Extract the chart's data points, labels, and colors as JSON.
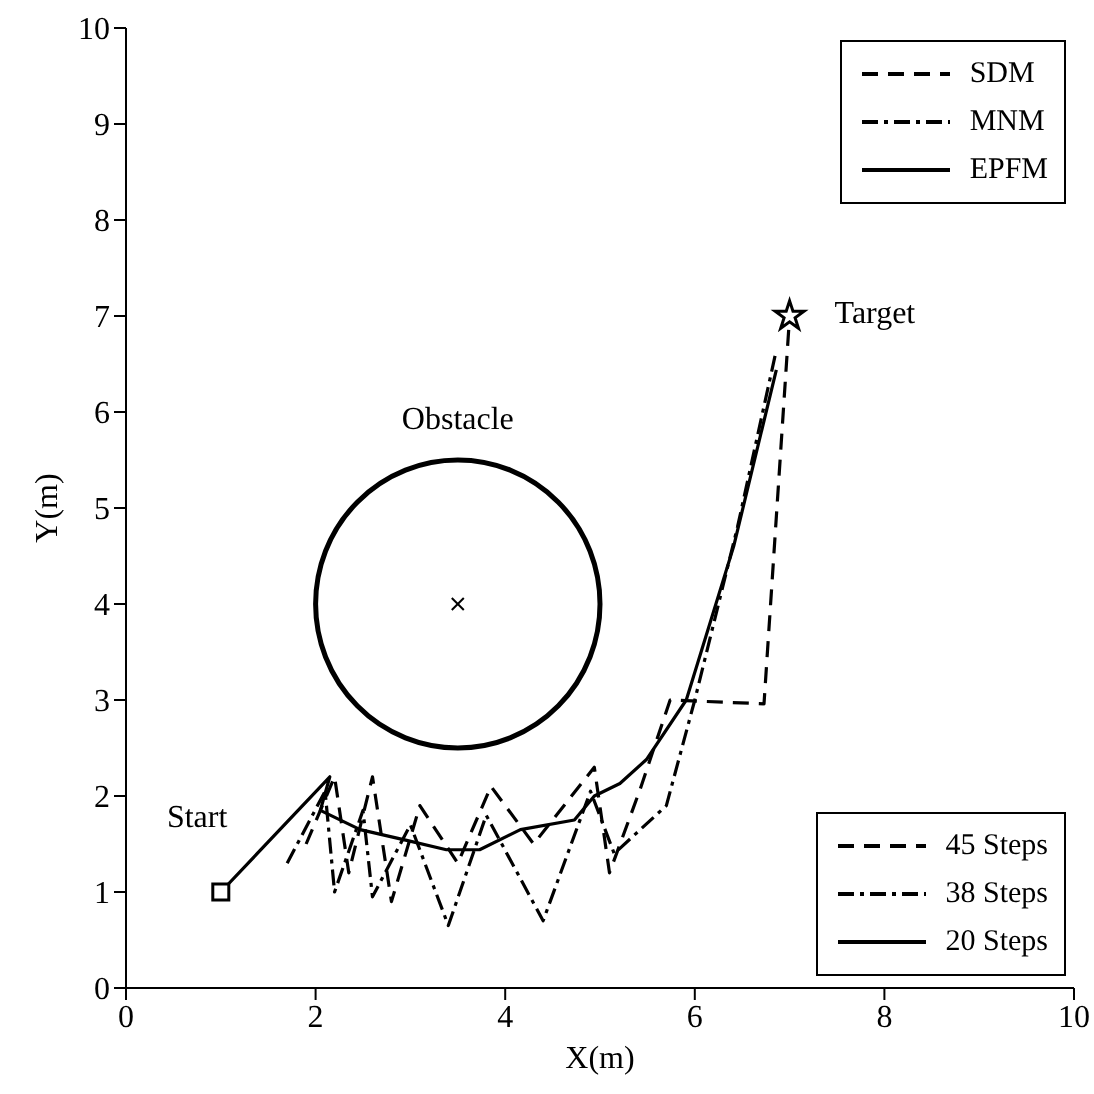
{
  "chart_data": {
    "type": "line",
    "xlabel": "X(m)",
    "ylabel": "Y(m)",
    "xlim": [
      0,
      10
    ],
    "ylim": [
      0,
      10
    ],
    "xticks": [
      0,
      2,
      4,
      6,
      8,
      10
    ],
    "yticks": [
      0,
      1,
      2,
      3,
      4,
      5,
      6,
      7,
      8,
      9,
      10
    ],
    "grid": false,
    "legend": "top right",
    "marker": "none",
    "series": [
      {
        "name": "SDM",
        "color": "#000000",
        "line_style": "dashed",
        "x": [
          1.9,
          2.2,
          2.35,
          2.6,
          2.8,
          3.1,
          3.5,
          3.85,
          4.3,
          4.94,
          5.1,
          5.42,
          5.74,
          6.73,
          7.0
        ],
        "values": [
          1.5,
          2.2,
          1.2,
          2.2,
          0.9,
          1.9,
          1.3,
          2.1,
          1.5,
          2.3,
          1.2,
          2.06,
          3.0,
          2.96,
          7.0
        ]
      },
      {
        "name": "MNM",
        "color": "#000000",
        "line_style": "dashdot",
        "x": [
          1.7,
          2.1,
          2.2,
          2.5,
          2.6,
          3.0,
          3.4,
          3.8,
          4.4,
          4.9,
          5.15,
          5.7,
          6.0,
          6.45,
          6.85
        ],
        "values": [
          1.3,
          2.05,
          1.0,
          1.85,
          0.95,
          1.7,
          0.65,
          1.8,
          0.7,
          2.05,
          1.4,
          1.9,
          3.0,
          4.8,
          6.6
        ]
      },
      {
        "name": "EPFM",
        "color": "#000000",
        "line_style": "solid",
        "x": [
          1,
          2.15,
          2.05,
          2.47,
          2.95,
          3.38,
          3.73,
          4.16,
          4.73,
          4.94,
          5.21,
          5.49,
          5.91,
          6.41,
          6.86
        ],
        "values": [
          1,
          2.2,
          1.85,
          1.65,
          1.54,
          1.44,
          1.44,
          1.65,
          1.75,
          2.0,
          2.13,
          2.38,
          3.0,
          4.6,
          6.44
        ]
      },
      {
        "type": "scatter",
        "color": "#000000",
        "marker": "square",
        "x": [
          1
        ],
        "values": [
          1
        ]
      },
      {
        "type": "scatter",
        "color": "#000000",
        "marker": "star",
        "x": [
          7
        ],
        "values": [
          7
        ]
      }
    ],
    "annotations": [
      "Obstacle",
      "Start",
      "Target",
      "45 Steps",
      "38 Steps",
      "20 Steps"
    ]
  }
}
